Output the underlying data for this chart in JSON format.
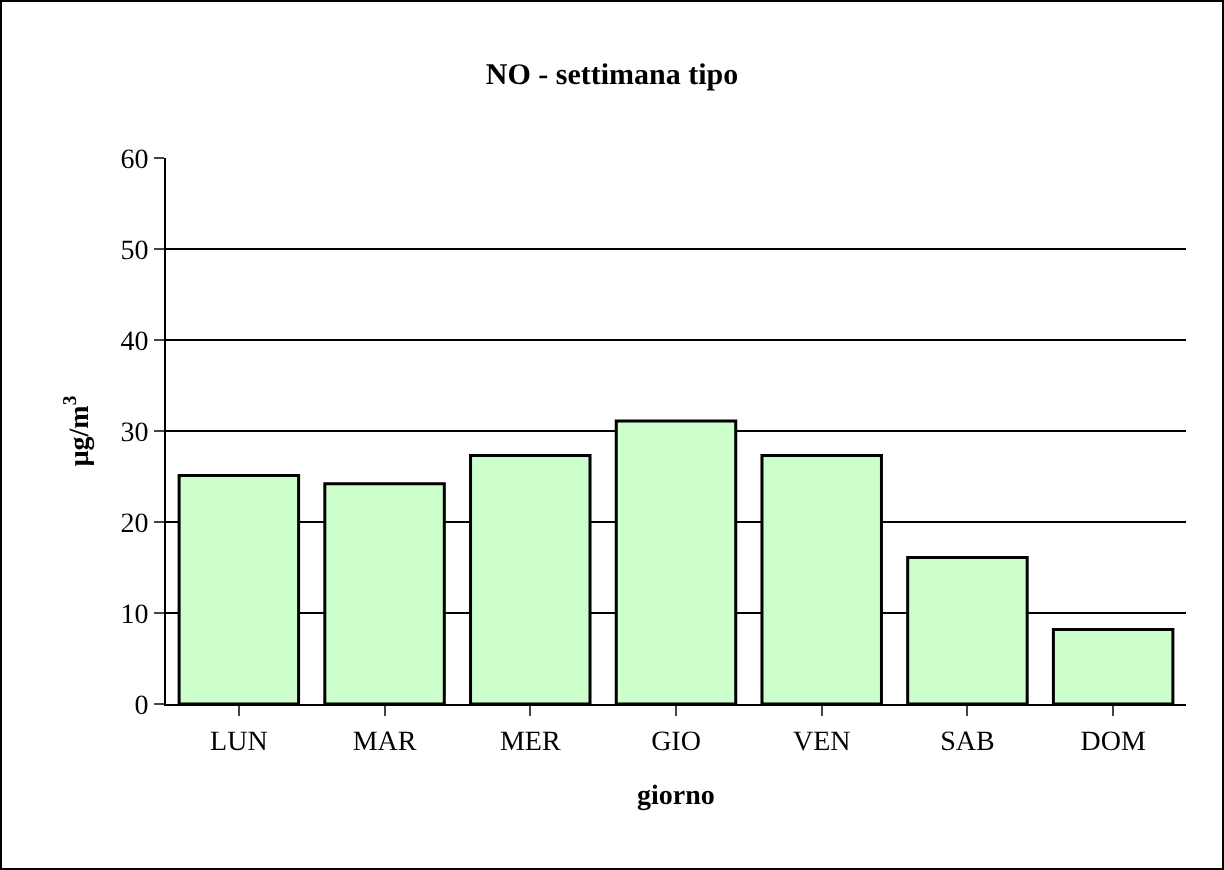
{
  "chart_data": {
    "type": "bar",
    "title": "NO - settimana tipo",
    "xlabel": "giorno",
    "ylabel": "µg/m$^{3}$",
    "categories": [
      "LUN",
      "MAR",
      "MER",
      "GIO",
      "VEN",
      "SAB",
      "DOM"
    ],
    "values": [
      25.1,
      24.2,
      27.3,
      31.1,
      27.3,
      16.1,
      8.2
    ],
    "color": "#ccffcc",
    "ylim": [
      0,
      60
    ],
    "yticks": [
      0,
      10,
      20,
      30,
      40,
      50,
      60
    ],
    "grid": "y",
    "legend": false
  }
}
